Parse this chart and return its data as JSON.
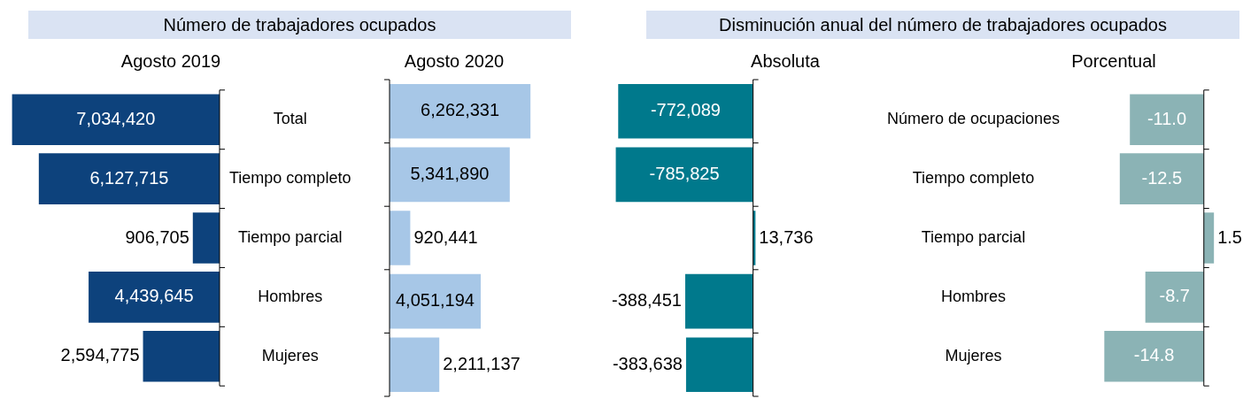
{
  "chart_data": [
    {
      "type": "bar",
      "orientation": "horizontal",
      "title": "Número de trabajadores ocupados",
      "subtitle": "Agosto 2019",
      "categories": [
        "Total",
        "Tiempo completo",
        "Tiempo parcial",
        "Hombres",
        "Mujeres"
      ],
      "values": [
        7034420,
        6127715,
        906705,
        4439645,
        2594775
      ],
      "value_labels": [
        "7,034,420",
        "6,127,715",
        "906,705",
        "4,439,645",
        "2,594,775"
      ],
      "color": "#0d427c",
      "tick_labels": "y"
    },
    {
      "type": "bar",
      "orientation": "horizontal",
      "subtitle": "Agosto 2020",
      "categories": [
        null,
        null,
        null,
        null,
        null
      ],
      "values": [
        6262331,
        5341890,
        920441,
        4051194,
        2211137
      ],
      "value_labels": [
        "6,262,331",
        "5,341,890",
        "920,441",
        "4,051,194",
        "2,211,137"
      ],
      "color": "#a7c7e7",
      "tick_labels": false
    },
    {
      "type": "bar",
      "orientation": "horizontal",
      "title": "Disminución anual del número de trabajadores ocupados",
      "subtitle": "Absoluta",
      "categories": [
        null,
        null,
        null,
        null,
        null
      ],
      "values": [
        -772089,
        -785825,
        13736,
        -388451,
        -383638
      ],
      "value_labels": [
        "-772,089",
        "-785,825",
        "13,736",
        "-388,451",
        "-383,638"
      ],
      "color": "#00798c",
      "tick_labels": false
    },
    {
      "type": "bar",
      "orientation": "horizontal",
      "subtitle": "Porcentual",
      "categories": [
        "Número de ocupaciones",
        "Tiempo completo",
        "Tiempo parcial",
        "Hombres",
        "Mujeres"
      ],
      "values": [
        -11.0,
        -12.5,
        1.5,
        -8.7,
        -14.8
      ],
      "value_labels": [
        "-11.0",
        "-12.5",
        "1.5",
        "-8.7",
        "-14.8"
      ],
      "color": "#8bb3b5",
      "tick_labels": "y"
    }
  ]
}
